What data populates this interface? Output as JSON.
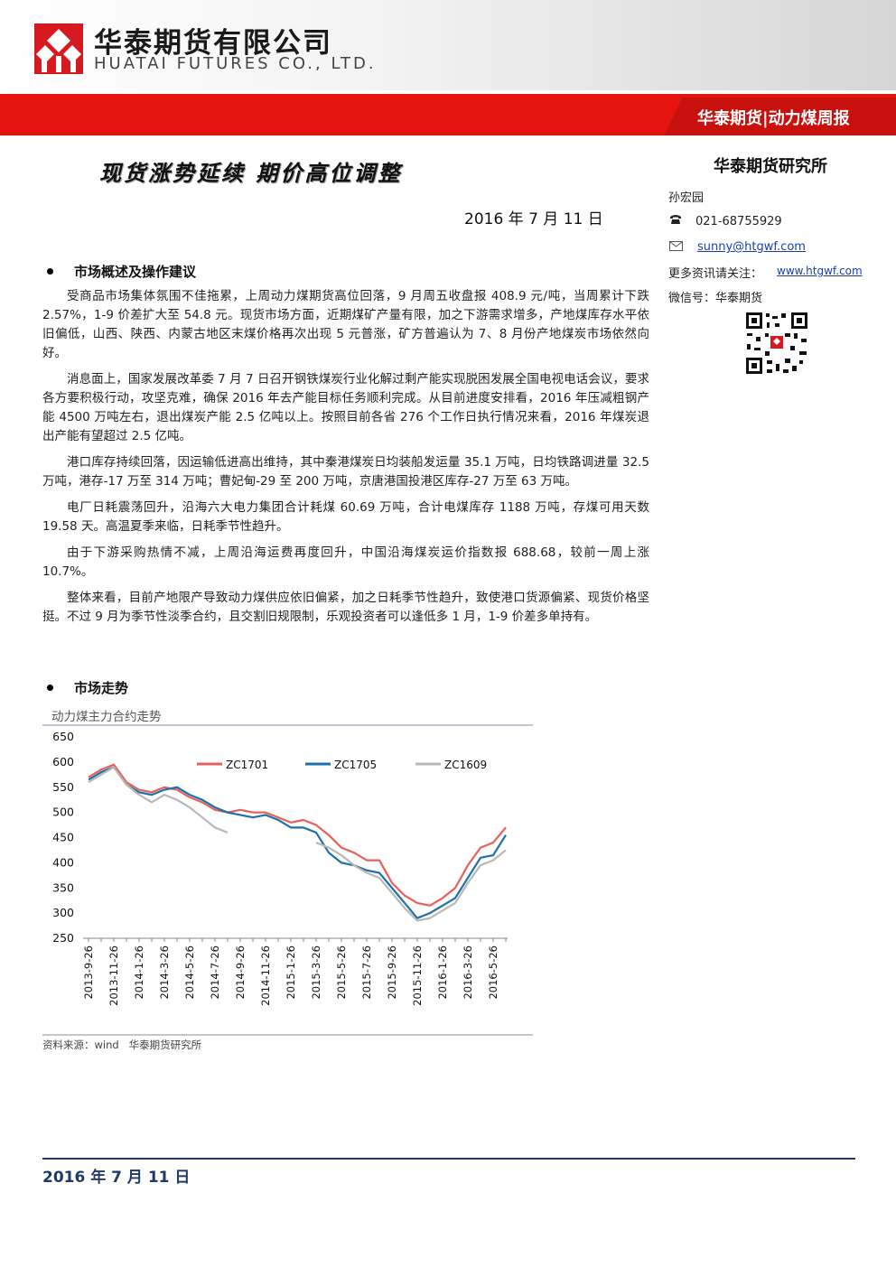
{
  "header": {
    "company_cn": "华泰期货有限公司",
    "company_en": "HUATAI FUTURES CO., LTD.",
    "report_tag": "华泰期货|动力煤周报"
  },
  "title": "现货涨势延续 期价高位调整",
  "report_date": "2016 年 7 月 11 日",
  "contact": {
    "institute": "华泰期货研究所",
    "author": "孙宏园",
    "phone": "021-68755929",
    "email": "sunny@htgwf.com",
    "more_label": "更多资讯请关注：",
    "website": "www.htgwf.com",
    "wechat": "微信号：华泰期货"
  },
  "sections": [
    {
      "heading": "市场概述及操作建议",
      "paragraphs": [
        "受商品市场集体氛围不佳拖累，上周动力煤期货高位回落，9 月周五收盘报 408.9 元/吨，当周累计下跌 2.57%，1-9 价差扩大至 54.8 元。现货市场方面，近期煤矿产量有限，加之下游需求增多，产地煤库存水平依旧偏低，山西、陕西、内蒙古地区末煤价格再次出现 5 元普涨，矿方普遍认为 7、8 月份产地煤炭市场依然向好。",
        "消息面上，国家发展改革委 7 月 7 日召开钢铁煤炭行业化解过剩产能实现脱困发展全国电视电话会议，要求各方要积极行动，攻坚克难，确保 2016 年去产能目标任务顺利完成。从目前进度安排看，2016 年压减粗钢产能 4500 万吨左右，退出煤炭产能 2.5 亿吨以上。按照目前各省 276 个工作日执行情况来看，2016 年煤炭退出产能有望超过 2.5 亿吨。",
        "港口库存持续回落，因运输低进高出维持，其中秦港煤炭日均装船发运量 35.1 万吨，日均铁路调进量 32.5 万吨，港存-17 万至 314 万吨；曹妃甸-29 至 200 万吨，京唐港国投港区库存-27 万至 63 万吨。",
        "电厂日耗震荡回升，沿海六大电力集团合计耗煤 60.69 万吨，合计电煤库存 1188 万吨，存煤可用天数 19.58 天。高温夏季来临，日耗季节性趋升。",
        "由于下游采购热情不减，上周沿海运费再度回升，中国沿海煤炭运价指数报 688.68，较前一周上涨 10.7%。",
        "整体来看，目前产地限产导致动力煤供应依旧偏紧，加之日耗季节性趋升，致使港口货源偏紧、现货价格坚挺。不过 9 月为季节性淡季合约，且交割旧规限制，乐观投资者可以逢低多 1 月，1-9 价差多单持有。"
      ]
    },
    {
      "heading": "市场走势"
    }
  ],
  "chart_data": {
    "type": "line",
    "title": "动力煤主力合约走势",
    "source": "资料来源：wind   华泰期货研究所",
    "categories": [
      "2013-9-26",
      null,
      "2013-11-26",
      null,
      "2014-1-26",
      null,
      "2014-3-26",
      null,
      "2014-5-26",
      null,
      "2014-7-26",
      null,
      "2014-9-26",
      null,
      "2014-11-26",
      null,
      "2015-1-26",
      null,
      "2015-3-26",
      null,
      "2015-5-26",
      null,
      "2015-7-26",
      null,
      "2015-9-26",
      null,
      "2015-11-26",
      null,
      "2016-1-26",
      null,
      "2016-3-26",
      null,
      "2016-5-26",
      null
    ],
    "series": [
      {
        "name": "ZC1701",
        "color": "#e8605c",
        "values": [
          570,
          585,
          595,
          560,
          545,
          540,
          550,
          545,
          530,
          520,
          505,
          500,
          505,
          500,
          500,
          490,
          480,
          485,
          475,
          455,
          430,
          420,
          405,
          405,
          360,
          335,
          320,
          315,
          330,
          350,
          395,
          430,
          440,
          470
        ]
      },
      {
        "name": "ZC1705",
        "color": "#1f6fa8",
        "values": [
          565,
          580,
          590,
          555,
          540,
          535,
          545,
          550,
          535,
          525,
          510,
          500,
          495,
          490,
          495,
          485,
          470,
          470,
          460,
          420,
          400,
          395,
          385,
          380,
          350,
          320,
          290,
          300,
          315,
          330,
          370,
          410,
          415,
          455
        ]
      },
      {
        "name": "ZC1609",
        "color": "#b8b8b8",
        "values": [
          560,
          575,
          590,
          555,
          535,
          520,
          535,
          525,
          510,
          490,
          470,
          460,
          null,
          null,
          null,
          null,
          null,
          null,
          440,
          430,
          415,
          395,
          380,
          370,
          340,
          310,
          285,
          290,
          305,
          320,
          360,
          395,
          405,
          425
        ]
      }
    ],
    "ylim": [
      250,
      650
    ],
    "yticks": [
      250,
      300,
      350,
      400,
      450,
      500,
      550,
      600,
      650
    ],
    "legend": "top",
    "grid": false
  }
}
